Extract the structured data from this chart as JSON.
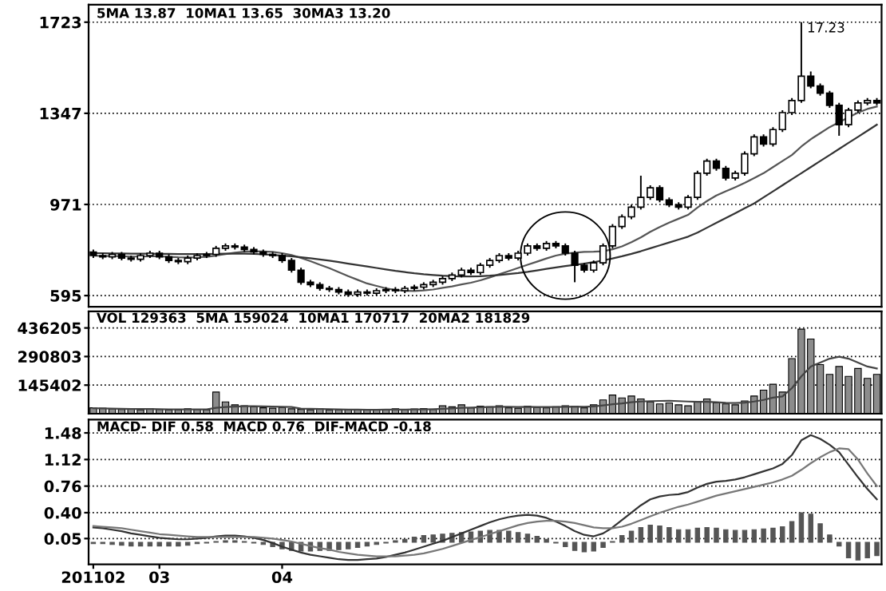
{
  "chart_data": [
    {
      "type": "candlestick",
      "categories": [
        "201102",
        null,
        null,
        null,
        null,
        null,
        null,
        "03",
        null,
        null,
        null,
        null,
        null,
        null,
        null,
        null,
        null,
        null,
        null,
        null,
        "04",
        null,
        null,
        null,
        null,
        null,
        null,
        null,
        null,
        null,
        null,
        null,
        null,
        null,
        null,
        null,
        null,
        null,
        null,
        null,
        null,
        null,
        null,
        null,
        null,
        null,
        null,
        null,
        null,
        null,
        null,
        null,
        null,
        null,
        null,
        null,
        null,
        null,
        null,
        null,
        null,
        null,
        null,
        null,
        null,
        null,
        null,
        null,
        null,
        null,
        null,
        null,
        null,
        null,
        null,
        null,
        null,
        null,
        null,
        null,
        null,
        null,
        null,
        null
      ],
      "ohlc": [
        [
          775,
          785,
          750,
          760
        ],
        [
          760,
          770,
          745,
          755
        ],
        [
          755,
          775,
          745,
          765
        ],
        [
          765,
          775,
          740,
          750
        ],
        [
          750,
          760,
          735,
          745
        ],
        [
          745,
          770,
          735,
          760
        ],
        [
          760,
          780,
          750,
          770
        ],
        [
          770,
          780,
          745,
          755
        ],
        [
          755,
          765,
          730,
          740
        ],
        [
          740,
          750,
          725,
          735
        ],
        [
          735,
          760,
          725,
          750
        ],
        [
          750,
          770,
          740,
          760
        ],
        [
          760,
          775,
          750,
          765
        ],
        [
          765,
          800,
          755,
          790
        ],
        [
          790,
          810,
          780,
          800
        ],
        [
          800,
          810,
          785,
          795
        ],
        [
          795,
          805,
          775,
          785
        ],
        [
          785,
          795,
          765,
          775
        ],
        [
          775,
          785,
          755,
          765
        ],
        [
          765,
          775,
          750,
          760
        ],
        [
          760,
          770,
          730,
          740
        ],
        [
          740,
          750,
          690,
          700
        ],
        [
          700,
          710,
          640,
          650
        ],
        [
          650,
          660,
          630,
          640
        ],
        [
          640,
          650,
          615,
          625
        ],
        [
          625,
          635,
          610,
          620
        ],
        [
          620,
          630,
          600,
          610
        ],
        [
          610,
          620,
          590,
          600
        ],
        [
          600,
          620,
          590,
          610
        ],
        [
          610,
          620,
          595,
          605
        ],
        [
          605,
          625,
          595,
          615
        ],
        [
          615,
          630,
          605,
          620
        ],
        [
          620,
          630,
          605,
          615
        ],
        [
          615,
          635,
          605,
          625
        ],
        [
          625,
          640,
          615,
          630
        ],
        [
          630,
          650,
          620,
          640
        ],
        [
          640,
          660,
          630,
          650
        ],
        [
          650,
          675,
          640,
          665
        ],
        [
          665,
          690,
          655,
          680
        ],
        [
          680,
          710,
          670,
          700
        ],
        [
          700,
          710,
          680,
          690
        ],
        [
          690,
          730,
          680,
          720
        ],
        [
          720,
          750,
          710,
          740
        ],
        [
          740,
          770,
          730,
          760
        ],
        [
          760,
          770,
          740,
          750
        ],
        [
          750,
          780,
          740,
          770
        ],
        [
          770,
          810,
          760,
          800
        ],
        [
          800,
          810,
          780,
          790
        ],
        [
          790,
          820,
          780,
          810
        ],
        [
          810,
          820,
          790,
          800
        ],
        [
          800,
          810,
          760,
          770
        ],
        [
          770,
          780,
          650,
          720
        ],
        [
          720,
          730,
          690,
          700
        ],
        [
          700,
          740,
          690,
          730
        ],
        [
          730,
          810,
          720,
          800
        ],
        [
          800,
          890,
          790,
          880
        ],
        [
          880,
          930,
          870,
          920
        ],
        [
          920,
          970,
          910,
          960
        ],
        [
          960,
          1090,
          950,
          1000
        ],
        [
          1000,
          1050,
          990,
          1040
        ],
        [
          1040,
          1050,
          980,
          990
        ],
        [
          990,
          1000,
          960,
          970
        ],
        [
          970,
          980,
          950,
          960
        ],
        [
          960,
          1010,
          950,
          1000
        ],
        [
          1000,
          1110,
          990,
          1100
        ],
        [
          1100,
          1160,
          1090,
          1150
        ],
        [
          1150,
          1160,
          1110,
          1120
        ],
        [
          1120,
          1130,
          1070,
          1080
        ],
        [
          1080,
          1110,
          1070,
          1100
        ],
        [
          1100,
          1190,
          1090,
          1180
        ],
        [
          1180,
          1260,
          1170,
          1250
        ],
        [
          1250,
          1260,
          1210,
          1220
        ],
        [
          1220,
          1290,
          1210,
          1280
        ],
        [
          1280,
          1360,
          1270,
          1350
        ],
        [
          1350,
          1410,
          1340,
          1400
        ],
        [
          1400,
          1723,
          1390,
          1500
        ],
        [
          1500,
          1520,
          1450,
          1460
        ],
        [
          1460,
          1470,
          1420,
          1430
        ],
        [
          1430,
          1440,
          1370,
          1380
        ],
        [
          1380,
          1390,
          1254,
          1300
        ],
        [
          1300,
          1370,
          1290,
          1360
        ],
        [
          1360,
          1400,
          1350,
          1390
        ],
        [
          1390,
          1410,
          1380,
          1400
        ],
        [
          1400,
          1410,
          1380,
          1390
        ]
      ],
      "series": [
        {
          "type": "line",
          "color": "#555555",
          "values": [
            760,
            758,
            758,
            757,
            756,
            756,
            757,
            757,
            755,
            753,
            752,
            753,
            755,
            760,
            766,
            772,
            776,
            778,
            777,
            775,
            770,
            762,
            750,
            737,
            722,
            708,
            692,
            675,
            660,
            645,
            635,
            625,
            618,
            615,
            614,
            616,
            620,
            627,
            633,
            641,
            648,
            658,
            670,
            683,
            696,
            709,
            722,
            735,
            748,
            760,
            768,
            772,
            775,
            776,
            778,
            786,
            798,
            815,
            835,
            858,
            878,
            896,
            912,
            928,
            958,
            985,
            1008,
            1025,
            1042,
            1060,
            1080,
            1100,
            1125,
            1150,
            1175,
            1210,
            1240,
            1265,
            1290,
            1310,
            1330,
            1350,
            1365,
            1375
          ]
        },
        {
          "type": "line",
          "color": "#333333",
          "values": [
            770,
            770,
            769,
            769,
            768,
            768,
            768,
            767,
            767,
            766,
            766,
            766,
            766,
            767,
            768,
            768,
            768,
            767,
            765,
            763,
            760,
            757,
            753,
            749,
            744,
            739,
            733,
            727,
            721,
            715,
            709,
            703,
            697,
            692,
            687,
            683,
            680,
            677,
            675,
            674,
            674,
            675,
            677,
            680,
            684,
            688,
            693,
            699,
            705,
            711,
            717,
            722,
            727,
            733,
            740,
            748,
            757,
            767,
            778,
            790,
            802,
            814,
            826,
            838,
            855,
            875,
            895,
            915,
            935,
            955,
            975,
            1000,
            1025,
            1050,
            1075,
            1100,
            1125,
            1150,
            1175,
            1200,
            1225,
            1250,
            1275,
            1300
          ]
        }
      ],
      "ylim": [
        549,
        1795
      ],
      "yticks": [
        595,
        971,
        1347,
        1723
      ],
      "grid": "y",
      "tick_labels": "y",
      "annotations": [
        "5MA 13.87  10MA1 13.65  30MA3 13.20",
        "17.23"
      ]
    },
    {
      "type": "bar",
      "categories": [
        "201102",
        null,
        null,
        null,
        null,
        null,
        null,
        "03",
        null,
        null,
        null,
        null,
        null,
        null,
        null,
        null,
        null,
        null,
        null,
        null,
        "04",
        null,
        null,
        null,
        null,
        null,
        null,
        null,
        null,
        null,
        null,
        null,
        null,
        null,
        null,
        null,
        null,
        null,
        null,
        null,
        null,
        null,
        null,
        null,
        null,
        null,
        null,
        null,
        null,
        null,
        null,
        null,
        null,
        null,
        null,
        null,
        null,
        null,
        null,
        null,
        null,
        null,
        null,
        null,
        null,
        null,
        null,
        null,
        null,
        null,
        null,
        null,
        null,
        null,
        null,
        null,
        null,
        null,
        null,
        null,
        null,
        null,
        null,
        null
      ],
      "series": [
        {
          "type": "bar",
          "color": "#8c8c8c",
          "values": [
            30000,
            28000,
            25000,
            22000,
            24000,
            20000,
            26000,
            22000,
            18000,
            20000,
            25000,
            22000,
            20000,
            110000,
            60000,
            45000,
            40000,
            35000,
            30000,
            28000,
            32000,
            25000,
            22000,
            20000,
            25000,
            18000,
            20000,
            22000,
            20000,
            18000,
            20000,
            22000,
            25000,
            20000,
            24000,
            26000,
            22000,
            40000,
            35000,
            45000,
            30000,
            38000,
            35000,
            40000,
            30000,
            28000,
            38000,
            32000,
            30000,
            35000,
            40000,
            38000,
            30000,
            45000,
            70000,
            95000,
            80000,
            90000,
            75000,
            60000,
            50000,
            55000,
            45000,
            40000,
            60000,
            75000,
            55000,
            50000,
            45000,
            65000,
            90000,
            120000,
            150000,
            110000,
            280000,
            430000,
            380000,
            250000,
            200000,
            240000,
            190000,
            230000,
            180000,
            200000
          ]
        },
        {
          "type": "line",
          "color": "#444444",
          "values": [
            28000,
            27000,
            26000,
            25000,
            24000,
            24000,
            24000,
            23000,
            22000,
            22000,
            22000,
            22000,
            22000,
            30000,
            34000,
            36000,
            38000,
            38000,
            37000,
            36000,
            35000,
            34000,
            26000,
            25000,
            24000,
            23000,
            22000,
            21000,
            21000,
            20000,
            20000,
            21000,
            21000,
            21000,
            22000,
            22000,
            23000,
            25000,
            27000,
            30000,
            31000,
            33000,
            34000,
            35000,
            35000,
            34000,
            35000,
            34000,
            34000,
            34000,
            35000,
            36000,
            35000,
            37000,
            42000,
            48000,
            52000,
            58000,
            62000,
            64000,
            65000,
            66000,
            64000,
            62000,
            60000,
            60000,
            58000,
            55000,
            54000,
            56000,
            62000,
            70000,
            82000,
            88000,
            130000,
            190000,
            240000,
            260000,
            280000,
            290000,
            280000,
            260000,
            240000,
            230000
          ]
        }
      ],
      "ylim": [
        0,
        520000
      ],
      "yticks": [
        145402,
        290803,
        436205
      ],
      "grid": "y",
      "tick_labels": "y",
      "annotations": [
        "VOL 129363  5MA 159024  10MA1 170717  20MA2 181829"
      ]
    },
    {
      "type": "line",
      "categories": [
        "201102",
        null,
        null,
        null,
        null,
        null,
        null,
        "03",
        null,
        null,
        null,
        null,
        null,
        null,
        null,
        null,
        null,
        null,
        null,
        null,
        "04",
        null,
        null,
        null,
        null,
        null,
        null,
        null,
        null,
        null,
        null,
        null,
        null,
        null,
        null,
        null,
        null,
        null,
        null,
        null,
        null,
        null,
        null,
        null,
        null,
        null,
        null,
        null,
        null,
        null,
        null,
        null,
        null,
        null,
        null,
        null,
        null,
        null,
        null,
        null,
        null,
        null,
        null,
        null,
        null,
        null,
        null,
        null,
        null,
        null,
        null,
        null,
        null,
        null,
        null,
        null,
        null,
        null,
        null,
        null,
        null,
        null,
        null,
        null
      ],
      "series": [
        {
          "type": "line",
          "color": "#333333",
          "values": [
            0.2,
            0.19,
            0.17,
            0.15,
            0.12,
            0.1,
            0.08,
            0.06,
            0.05,
            0.04,
            0.04,
            0.05,
            0.06,
            0.08,
            0.09,
            0.09,
            0.08,
            0.06,
            0.03,
            -0.01,
            -0.06,
            -0.1,
            -0.14,
            -0.17,
            -0.19,
            -0.21,
            -0.23,
            -0.24,
            -0.24,
            -0.23,
            -0.22,
            -0.2,
            -0.17,
            -0.14,
            -0.1,
            -0.06,
            -0.02,
            0.02,
            0.07,
            0.12,
            0.17,
            0.22,
            0.27,
            0.31,
            0.34,
            0.36,
            0.37,
            0.36,
            0.33,
            0.28,
            0.22,
            0.15,
            0.1,
            0.08,
            0.12,
            0.2,
            0.3,
            0.4,
            0.5,
            0.58,
            0.62,
            0.64,
            0.65,
            0.68,
            0.74,
            0.79,
            0.82,
            0.83,
            0.85,
            0.88,
            0.92,
            0.96,
            1.0,
            1.06,
            1.18,
            1.38,
            1.45,
            1.4,
            1.32,
            1.22,
            1.05,
            0.88,
            0.72,
            0.58
          ]
        },
        {
          "type": "line",
          "color": "#777777",
          "values": [
            0.22,
            0.21,
            0.2,
            0.19,
            0.17,
            0.15,
            0.13,
            0.11,
            0.1,
            0.09,
            0.08,
            0.07,
            0.07,
            0.07,
            0.07,
            0.07,
            0.07,
            0.07,
            0.06,
            0.05,
            0.03,
            0.01,
            -0.02,
            -0.05,
            -0.08,
            -0.1,
            -0.13,
            -0.15,
            -0.17,
            -0.18,
            -0.19,
            -0.19,
            -0.19,
            -0.18,
            -0.17,
            -0.15,
            -0.12,
            -0.09,
            -0.05,
            -0.01,
            0.03,
            0.07,
            0.11,
            0.15,
            0.19,
            0.23,
            0.26,
            0.28,
            0.29,
            0.29,
            0.28,
            0.26,
            0.23,
            0.2,
            0.19,
            0.19,
            0.21,
            0.25,
            0.3,
            0.35,
            0.4,
            0.44,
            0.48,
            0.51,
            0.55,
            0.59,
            0.63,
            0.66,
            0.69,
            0.72,
            0.75,
            0.78,
            0.81,
            0.85,
            0.9,
            0.98,
            1.07,
            1.15,
            1.22,
            1.27,
            1.26,
            1.12,
            0.93,
            0.76
          ]
        },
        {
          "type": "bar",
          "color": "#555555",
          "values": [
            -0.02,
            -0.02,
            -0.03,
            -0.04,
            -0.05,
            -0.05,
            -0.05,
            -0.05,
            -0.05,
            -0.05,
            -0.04,
            -0.02,
            -0.01,
            0.01,
            0.02,
            0.02,
            0.01,
            -0.01,
            -0.03,
            -0.06,
            -0.09,
            -0.11,
            -0.12,
            -0.12,
            -0.11,
            -0.11,
            -0.1,
            -0.09,
            -0.07,
            -0.05,
            -0.03,
            -0.01,
            0.02,
            0.04,
            0.07,
            0.09,
            0.1,
            0.11,
            0.12,
            0.13,
            0.14,
            0.15,
            0.16,
            0.16,
            0.15,
            0.13,
            0.11,
            0.08,
            0.04,
            -0.01,
            -0.06,
            -0.11,
            -0.13,
            -0.12,
            -0.07,
            0.01,
            0.09,
            0.15,
            0.2,
            0.23,
            0.22,
            0.2,
            0.17,
            0.17,
            0.19,
            0.2,
            0.19,
            0.17,
            0.16,
            0.16,
            0.17,
            0.18,
            0.19,
            0.21,
            0.28,
            0.4,
            0.38,
            0.25,
            0.1,
            -0.05,
            -0.21,
            -0.24,
            -0.21,
            -0.18
          ]
        }
      ],
      "ylim": [
        -0.3,
        1.66
      ],
      "yticks": [
        0.05,
        {
          "value": 0.4,
          "label": "0.40"
        },
        0.76,
        1.12,
        1.48
      ],
      "grid": "y",
      "annotations": [
        "MACD- DIF 0.58  MACD 0.76  DIF-MACD -0.18"
      ]
    }
  ]
}
